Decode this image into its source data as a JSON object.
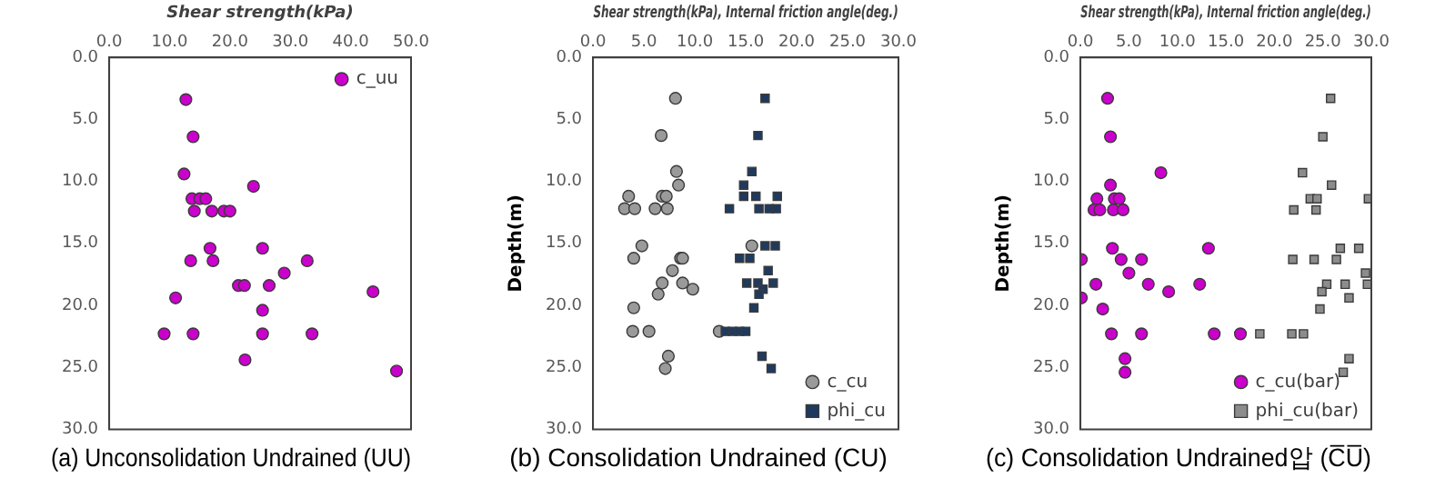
{
  "chart_data": [
    {
      "type": "scatter",
      "title": "(a) Unconsolidation Undrained (UU)",
      "xlabel": "Shear strength(kPa)",
      "xlim": [
        0,
        50
      ],
      "xticks": [
        {
          "value": 0,
          "label": "0.0"
        },
        {
          "value": 10,
          "label": "10.0"
        },
        {
          "value": 20,
          "label": "20.0"
        },
        {
          "value": 30,
          "label": "30.0"
        },
        {
          "value": 40,
          "label": "40.0"
        },
        {
          "value": 50,
          "label": "50.0"
        }
      ],
      "ylim": [
        30,
        0
      ],
      "yticks": [
        {
          "value": 0,
          "label": "0.0"
        },
        {
          "value": 5,
          "label": "5.0"
        },
        {
          "value": 10,
          "label": "10.0"
        },
        {
          "value": 15,
          "label": "15.0"
        },
        {
          "value": 20,
          "label": "20.0"
        },
        {
          "value": 25,
          "label": "25.0"
        },
        {
          "value": 30,
          "label": "30.0"
        }
      ],
      "grid": false,
      "legend": "top right",
      "series": [
        {
          "name": "c_uu",
          "color": "#cc00cc",
          "marker": "circle",
          "x": [
            12.7,
            13.9,
            12.4,
            23.9,
            13.7,
            15.0,
            16.0,
            14.1,
            17.0,
            19.0,
            20.0,
            16.7,
            25.4,
            13.5,
            17.2,
            32.8,
            29.0,
            21.4,
            22.4,
            26.5,
            43.7,
            11.0,
            25.4,
            9.1,
            13.9,
            25.4,
            33.6,
            22.5,
            47.6
          ],
          "values": [
            3.4,
            6.4,
            9.4,
            10.4,
            11.4,
            11.4,
            11.4,
            12.4,
            12.4,
            12.4,
            12.4,
            15.4,
            15.4,
            16.4,
            16.4,
            16.4,
            17.4,
            18.4,
            18.4,
            18.4,
            18.9,
            19.4,
            20.4,
            22.3,
            22.3,
            22.3,
            22.3,
            24.4,
            25.3
          ]
        }
      ]
    },
    {
      "type": "scatter",
      "title": "(b) Consolidation Undrained (CU)",
      "xlabel": "Shear strength(kPa), Internal friction angle(deg.)",
      "ylabel": "Depth(m)",
      "xlim": [
        0,
        30
      ],
      "xticks": [
        {
          "value": 0,
          "label": "0.0"
        },
        {
          "value": 5,
          "label": "5.0"
        },
        {
          "value": 10,
          "label": "10.0"
        },
        {
          "value": 15,
          "label": "15.0"
        },
        {
          "value": 20,
          "label": "20.0"
        },
        {
          "value": 25,
          "label": "25.0"
        },
        {
          "value": 30,
          "label": "30.0"
        }
      ],
      "ylim": [
        30,
        0
      ],
      "yticks": [
        {
          "value": 0,
          "label": "0.0"
        },
        {
          "value": 5,
          "label": "5.0"
        },
        {
          "value": 10,
          "label": "10.0"
        },
        {
          "value": 15,
          "label": "15.0"
        },
        {
          "value": 20,
          "label": "20.0"
        },
        {
          "value": 25,
          "label": "25.0"
        },
        {
          "value": 30,
          "label": "30.0"
        }
      ],
      "grid": false,
      "legend": "bottom right",
      "series": [
        {
          "name": "c_cu",
          "color": "#9a9a9a",
          "marker": "circle",
          "x": [
            8.1,
            6.7,
            8.2,
            8.4,
            3.5,
            6.8,
            7.2,
            3.1,
            4.1,
            6.1,
            7.3,
            4.8,
            15.6,
            4.0,
            8.6,
            8.8,
            7.8,
            6.8,
            8.8,
            9.8,
            6.4,
            4.0,
            3.9,
            5.5,
            12.4,
            7.4,
            7.1
          ],
          "values": [
            3.3,
            6.3,
            9.2,
            10.3,
            11.2,
            11.2,
            11.2,
            12.2,
            12.2,
            12.2,
            12.2,
            15.2,
            15.2,
            16.2,
            16.2,
            16.2,
            17.2,
            18.2,
            18.2,
            18.7,
            19.1,
            20.2,
            22.1,
            22.1,
            22.1,
            24.1,
            25.1
          ]
        },
        {
          "name": "phi_cu",
          "color": "#1f3a5f",
          "marker": "square",
          "x": [
            16.9,
            16.2,
            15.6,
            14.8,
            14.8,
            16.0,
            18.1,
            13.4,
            16.3,
            17.3,
            18.0,
            16.9,
            17.9,
            14.4,
            15.4,
            17.2,
            15.1,
            16.2,
            17.7,
            16.7,
            16.3,
            15.8,
            13.0,
            13.7,
            14.4,
            15.0,
            16.6,
            17.5
          ],
          "values": [
            3.3,
            6.3,
            9.2,
            10.3,
            11.2,
            11.2,
            11.2,
            12.2,
            12.2,
            12.2,
            12.2,
            15.2,
            15.2,
            16.2,
            16.2,
            17.2,
            18.2,
            18.2,
            18.2,
            18.7,
            19.1,
            20.2,
            22.1,
            22.1,
            22.1,
            22.1,
            24.1,
            25.1
          ]
        }
      ]
    },
    {
      "type": "scatter",
      "title": "(c) Consolidation Undrained압 (C̅U̅)",
      "xlabel": "Shear strength(kPa), Internal friction angle(deg.)",
      "ylabel": "Depth(m)",
      "xlim": [
        0,
        30
      ],
      "xticks": [
        {
          "value": 0,
          "label": "0.0"
        },
        {
          "value": 5,
          "label": "5.0"
        },
        {
          "value": 10,
          "label": "10.0"
        },
        {
          "value": 15,
          "label": "15.0"
        },
        {
          "value": 20,
          "label": "20.0"
        },
        {
          "value": 25,
          "label": "25.0"
        },
        {
          "value": 30,
          "label": "30.0"
        }
      ],
      "ylim": [
        30,
        0
      ],
      "yticks": [
        {
          "value": 0,
          "label": "0.0"
        },
        {
          "value": 5,
          "label": "5.0"
        },
        {
          "value": 10,
          "label": "10.0"
        },
        {
          "value": 15,
          "label": "15.0"
        },
        {
          "value": 20,
          "label": "20.0"
        },
        {
          "value": 25,
          "label": "25.0"
        },
        {
          "value": 30,
          "label": "30.0"
        }
      ],
      "grid": false,
      "legend": "bottom right",
      "series": [
        {
          "name": "c_cu(bar)",
          "color": "#cc00cc",
          "marker": "circle",
          "x": [
            2.8,
            3.1,
            8.3,
            3.1,
            1.7,
            3.5,
            4.0,
            1.4,
            2.0,
            3.4,
            4.4,
            3.3,
            13.2,
            0.1,
            4.2,
            6.3,
            5.0,
            1.6,
            7.0,
            12.3,
            9.1,
            0.1,
            2.3,
            3.2,
            6.3,
            13.8,
            16.5,
            4.6,
            4.6
          ],
          "values": [
            3.3,
            6.4,
            9.3,
            10.3,
            11.4,
            11.4,
            11.4,
            12.3,
            12.3,
            12.3,
            12.3,
            15.4,
            15.4,
            16.3,
            16.3,
            16.3,
            17.4,
            18.3,
            18.3,
            18.3,
            18.9,
            19.4,
            20.3,
            22.3,
            22.3,
            22.3,
            22.3,
            24.3,
            25.4
          ]
        },
        {
          "name": "phi_cu(bar)",
          "color": "#8c8c8c",
          "marker": "square",
          "x": [
            25.8,
            25.0,
            22.9,
            25.9,
            23.7,
            24.4,
            29.7,
            22.0,
            24.3,
            28.7,
            26.8,
            21.9,
            24.1,
            26.4,
            29.4,
            25.4,
            27.3,
            29.6,
            24.9,
            27.7,
            24.7,
            18.5,
            21.8,
            23.0,
            27.7,
            27.1
          ],
          "values": [
            3.3,
            6.4,
            9.3,
            10.3,
            11.4,
            11.4,
            11.4,
            12.3,
            12.3,
            15.4,
            15.4,
            16.3,
            16.3,
            16.3,
            17.4,
            18.3,
            18.3,
            18.3,
            18.9,
            19.4,
            20.3,
            22.3,
            22.3,
            22.3,
            24.3,
            25.4
          ]
        }
      ]
    }
  ]
}
